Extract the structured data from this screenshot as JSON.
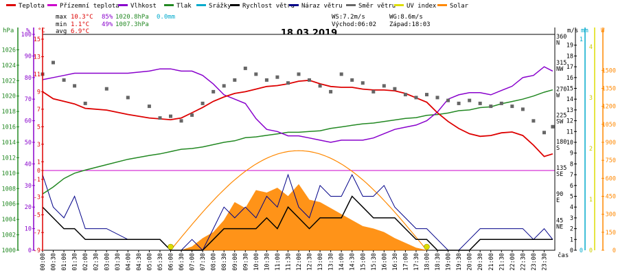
{
  "legend": [
    {
      "key": "teplota",
      "label": "Teplota",
      "color": "#dd0000"
    },
    {
      "key": "prizemni",
      "label": "Přízemní teplota",
      "color": "#cc00cc"
    },
    {
      "key": "vlhkost",
      "label": "Vlhkost",
      "color": "#8800cc"
    },
    {
      "key": "tlak",
      "label": "Tlak",
      "color": "#228822"
    },
    {
      "key": "srazky",
      "label": "Srážky",
      "color": "#00aacc"
    },
    {
      "key": "rychlost",
      "label": "Rychlost větru",
      "color": "#000000"
    },
    {
      "key": "naraz",
      "label": "Náraz větru",
      "color": "#000088"
    },
    {
      "key": "smer",
      "label": "Směr větru",
      "color": "#666666"
    },
    {
      "key": "uv",
      "label": "UV index",
      "color": "#dddd00"
    },
    {
      "key": "solar",
      "label": "Solar",
      "color": "#ff8800"
    }
  ],
  "stats": {
    "max_label": "max",
    "max_temp": "10.3°C",
    "max_hum": "85%",
    "max_press": "1020.8hPa",
    "max_rain": "0.0mm",
    "min_label": "min",
    "min_temp": "1.1°C",
    "min_hum": "49%",
    "min_press": "1007.3hPa",
    "avg_label": "avg",
    "avg_temp": "6.9°C",
    "ws": "WS:7.2m/s",
    "wg": "WG:8.6m/s",
    "sunrise": "Východ:06:02",
    "sunset": "Západ:18:03"
  },
  "colors": {
    "max_temp": "#dd0000",
    "max_hum": "#8800cc",
    "max_press": "#228822",
    "max_rain": "#00aacc",
    "frame": "#000000",
    "grid": "#dddddd"
  },
  "chart_data": {
    "type": "line",
    "title": "18.03.2019",
    "xlabel": "čas",
    "x_ticks": [
      "00:00",
      "00:30",
      "01:00",
      "01:30",
      "02:00",
      "02:30",
      "03:00",
      "03:30",
      "04:00",
      "04:30",
      "05:00",
      "05:30",
      "06:00",
      "06:30",
      "07:00",
      "07:30",
      "08:00",
      "08:30",
      "09:00",
      "09:30",
      "10:00",
      "10:30",
      "11:00",
      "11:30",
      "12:00",
      "12:30",
      "13:00",
      "13:30",
      "14:00",
      "14:30",
      "15:00",
      "15:30",
      "16:00",
      "16:30",
      "17:00",
      "17:30",
      "18:00",
      "18:30",
      "19:00",
      "19:30",
      "20:00",
      "20:30",
      "21:00",
      "21:30",
      "22:00",
      "22:30",
      "23:00",
      "23:30"
    ],
    "axes": {
      "pressure": {
        "unit": "hPa",
        "range": [
          1000,
          1028
        ],
        "ticks": [
          1000,
          1002,
          1004,
          1006,
          1008,
          1010,
          1012,
          1014,
          1016,
          1018,
          1020,
          1022,
          1024,
          1026
        ]
      },
      "humidity": {
        "unit": "%",
        "range": [
          0,
          100
        ],
        "ticks": [
          0,
          10,
          20,
          30,
          40,
          50,
          60,
          70,
          80,
          90,
          100
        ]
      },
      "temperature": {
        "unit": "°C",
        "range": [
          -9,
          15
        ],
        "ticks": [
          -9,
          -7,
          -5,
          -3,
          -1,
          0,
          1,
          3,
          5,
          7,
          9,
          11,
          13,
          15
        ]
      },
      "direction": {
        "unit": "",
        "ticks": [
          {
            "deg": 45,
            "label": "45",
            "dir": "NE"
          },
          {
            "deg": 90,
            "label": "90",
            "dir": "E"
          },
          {
            "deg": 135,
            "label": "135",
            "dir": "SE"
          },
          {
            "deg": 180,
            "label": "180",
            "dir": "S"
          },
          {
            "deg": 225,
            "label": "225",
            "dir": "SW"
          },
          {
            "deg": 270,
            "label": "270",
            "dir": "W"
          },
          {
            "deg": 315,
            "label": "315",
            "dir": "NW"
          },
          {
            "deg": 360,
            "label": "360",
            "dir": "N"
          }
        ]
      },
      "wind": {
        "unit": "m/s",
        "range": [
          0,
          20
        ],
        "ticks": [
          0,
          1,
          2,
          3,
          4,
          5,
          6,
          7,
          8,
          9,
          10,
          11,
          12,
          13,
          14,
          15,
          16,
          17,
          18,
          19
        ]
      },
      "rain": {
        "unit": "mm",
        "ticks": [
          0,
          1
        ]
      },
      "uv": {
        "unit": "",
        "ticks": [
          0,
          1,
          2,
          3,
          4
        ]
      },
      "solar": {
        "unit": "W",
        "range": [
          0,
          1800
        ],
        "ticks": [
          0,
          150,
          300,
          450,
          600,
          750,
          900,
          1050,
          1200,
          1350,
          1500
        ]
      }
    },
    "series": [
      {
        "name": "Teplota",
        "axis": "temperature",
        "x_hours": [
          0,
          0.5,
          1,
          1.5,
          2,
          3,
          4,
          5,
          5.5,
          6,
          6.5,
          7,
          7.5,
          8,
          8.5,
          9,
          9.5,
          10,
          10.5,
          11,
          11.5,
          12,
          12.5,
          13,
          13.5,
          14,
          14.5,
          15,
          15.5,
          16,
          16.5,
          17,
          17.5,
          18,
          18.5,
          19,
          19.5,
          20,
          20.5,
          21,
          21.5,
          22,
          22.5,
          23,
          23.5,
          23.9
        ],
        "values": [
          9.0,
          8.2,
          7.9,
          7.6,
          7.1,
          6.9,
          6.4,
          6.0,
          5.9,
          5.8,
          6.0,
          6.6,
          7.2,
          7.9,
          8.4,
          8.8,
          9.0,
          9.3,
          9.6,
          9.7,
          9.9,
          10.2,
          10.3,
          9.9,
          9.6,
          9.5,
          9.5,
          9.3,
          9.2,
          9.2,
          9.1,
          8.8,
          8.3,
          7.8,
          6.6,
          5.6,
          4.8,
          4.2,
          3.9,
          4.0,
          4.3,
          4.4,
          4.0,
          2.9,
          1.6,
          1.9
        ]
      },
      {
        "name": "Vlhkost",
        "axis": "humidity",
        "x_hours": [
          0,
          0.5,
          1,
          1.5,
          2,
          3,
          4,
          5,
          5.5,
          6,
          6.5,
          7,
          7.5,
          8,
          8.5,
          9,
          9.5,
          10,
          10.5,
          11,
          11.5,
          12,
          12.5,
          13,
          13.5,
          14,
          14.5,
          15,
          15.5,
          16,
          16.5,
          17,
          17.5,
          18,
          18.5,
          19,
          19.5,
          20,
          20.5,
          21,
          21.5,
          22,
          22.5,
          23,
          23.5,
          23.9
        ],
        "values": [
          79,
          80,
          81,
          82,
          82,
          82,
          82,
          83,
          84,
          84,
          83,
          83,
          81,
          77,
          72,
          70,
          68,
          61,
          56,
          55,
          53,
          53,
          52,
          51,
          50,
          51,
          51,
          51,
          52,
          54,
          56,
          57,
          58,
          60,
          64,
          70,
          72,
          73,
          73,
          72,
          74,
          76,
          80,
          81,
          85,
          83
        ]
      },
      {
        "name": "Tlak",
        "axis": "pressure",
        "x_hours": [
          0,
          0.5,
          1,
          1.5,
          2,
          3,
          4,
          5,
          5.5,
          6,
          6.5,
          7,
          7.5,
          8,
          8.5,
          9,
          9.5,
          10,
          10.5,
          11,
          11.5,
          12,
          12.5,
          13,
          13.5,
          14,
          14.5,
          15,
          15.5,
          16,
          16.5,
          17,
          17.5,
          18,
          18.5,
          19,
          19.5,
          20,
          20.5,
          21,
          21.5,
          22,
          22.5,
          23,
          23.5,
          23.9
        ],
        "values": [
          1007.3,
          1008.2,
          1009.3,
          1010.0,
          1010.4,
          1011.1,
          1011.8,
          1012.3,
          1012.5,
          1012.8,
          1013.1,
          1013.2,
          1013.4,
          1013.7,
          1014.0,
          1014.2,
          1014.6,
          1014.7,
          1014.9,
          1015.1,
          1015.3,
          1015.3,
          1015.4,
          1015.5,
          1015.8,
          1016.0,
          1016.2,
          1016.4,
          1016.5,
          1016.7,
          1016.9,
          1017.1,
          1017.2,
          1017.5,
          1017.6,
          1017.8,
          1018.1,
          1018.2,
          1018.5,
          1018.6,
          1019.0,
          1019.3,
          1019.6,
          1020.0,
          1020.5,
          1020.8
        ]
      },
      {
        "name": "Rychlost větru",
        "axis": "wind",
        "x_hours": [
          0,
          0.5,
          1,
          1.5,
          2,
          3,
          4,
          5,
          5.5,
          6,
          6.5,
          7,
          7.5,
          8,
          8.5,
          9,
          9.5,
          10,
          10.5,
          11,
          11.5,
          12,
          12.5,
          13,
          13.5,
          14,
          14.5,
          15,
          15.5,
          16,
          16.5,
          17,
          17.5,
          18,
          18.5,
          19,
          19.5,
          20,
          20.5,
          21,
          21.5,
          22,
          22.5,
          23,
          23.5,
          23.9
        ],
        "values": [
          4,
          3,
          2,
          2,
          1,
          1,
          1,
          1,
          1,
          0,
          0,
          0,
          0,
          1,
          2,
          2,
          2,
          2,
          3,
          2,
          4,
          3,
          2,
          3,
          3,
          3,
          5,
          4,
          3,
          3,
          3,
          2,
          1,
          1,
          0,
          0,
          0,
          0,
          1,
          1,
          1,
          1,
          1,
          1,
          1,
          1
        ]
      },
      {
        "name": "Náraz větru",
        "axis": "wind",
        "x_hours": [
          0,
          0.5,
          1,
          1.5,
          2,
          3,
          4,
          5,
          5.5,
          6,
          6.5,
          7,
          7.5,
          8,
          8.5,
          9,
          9.5,
          10,
          10.5,
          11,
          11.5,
          12,
          12.5,
          13,
          13.5,
          14,
          14.5,
          15,
          15.5,
          16,
          16.5,
          17,
          17.5,
          18,
          18.5,
          19,
          19.5,
          20,
          20.5,
          21,
          21.5,
          22,
          22.5,
          23,
          23.5,
          23.9
        ],
        "values": [
          7,
          4,
          3,
          5,
          2,
          2,
          1,
          1,
          1,
          0,
          0,
          1,
          0,
          2,
          4,
          3,
          4,
          3,
          5,
          4,
          7,
          4,
          3,
          6,
          5,
          5,
          7,
          5,
          5,
          6,
          4,
          3,
          2,
          2,
          1,
          0,
          0,
          1,
          2,
          2,
          2,
          2,
          2,
          1,
          2,
          1
        ]
      },
      {
        "name": "Směr větru",
        "axis": "direction",
        "x_hours": [
          0,
          0.5,
          1,
          1.5,
          2,
          3,
          4,
          5,
          5.5,
          6,
          6.5,
          7,
          7.5,
          8,
          8.5,
          9,
          9.5,
          10,
          10.5,
          11,
          11.5,
          12,
          12.5,
          13,
          13.5,
          14,
          14.5,
          15,
          15.5,
          16,
          16.5,
          17,
          17.5,
          18,
          18.5,
          19,
          19.5,
          20,
          20.5,
          21,
          21.5,
          22,
          22.5,
          23,
          23.5,
          23.9
        ],
        "values": [
          300,
          320,
          290,
          280,
          250,
          275,
          260,
          245,
          225,
          228,
          220,
          230,
          250,
          270,
          280,
          290,
          310,
          300,
          290,
          295,
          285,
          300,
          290,
          280,
          270,
          300,
          290,
          285,
          270,
          280,
          275,
          265,
          260,
          265,
          260,
          255,
          250,
          255,
          250,
          245,
          250,
          245,
          240,
          220,
          200,
          210
        ]
      },
      {
        "name": "Solar",
        "axis": "solar",
        "x_hours": [
          6.5,
          7,
          7.5,
          8,
          8.5,
          9,
          9.5,
          10,
          10.5,
          11,
          11.5,
          12,
          12.5,
          13,
          13.5,
          14,
          14.5,
          15,
          15.5,
          16,
          16.5,
          17,
          17.5,
          18
        ],
        "values": [
          0,
          30,
          100,
          150,
          250,
          400,
          350,
          500,
          480,
          520,
          450,
          550,
          420,
          400,
          350,
          300,
          250,
          200,
          180,
          150,
          100,
          60,
          20,
          0
        ]
      },
      {
        "name": "Solar",
        "axis": "solar",
        "x_hours": [
          6,
          7,
          8,
          9,
          10,
          11,
          12,
          13,
          14,
          15,
          16,
          17,
          18
        ],
        "values": [
          0,
          215,
          415,
          590,
          720,
          800,
          830,
          800,
          720,
          590,
          415,
          215,
          0
        ]
      },
      {
        "name": "UV index",
        "axis": "uv",
        "x_hours": [
          6,
          18
        ],
        "values": [
          0,
          0
        ]
      }
    ]
  }
}
